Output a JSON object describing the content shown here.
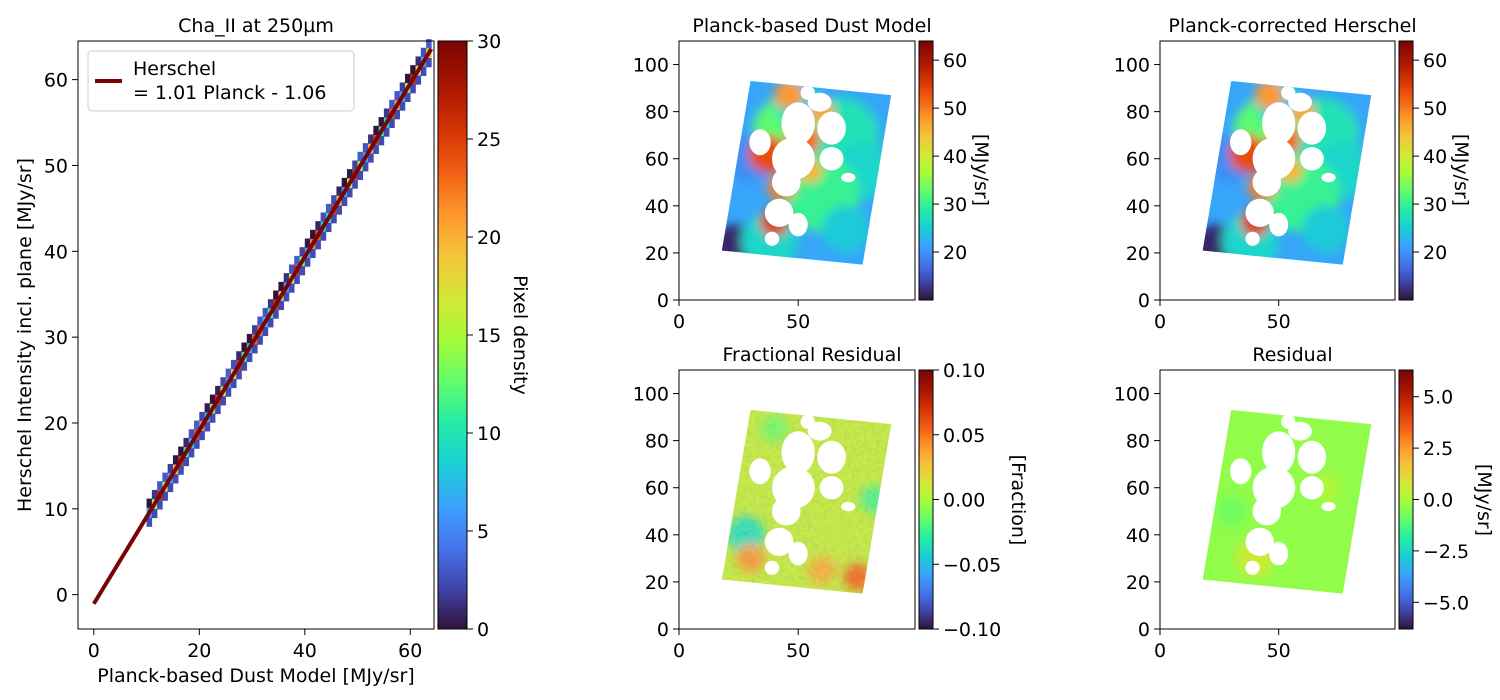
{
  "chart_data": [
    {
      "id": "scatter",
      "type": "heatmap",
      "title": "Cha_II at 250µm",
      "xlabel": "Planck-based Dust Model [MJy/sr]",
      "ylabel": "Herschel Intensity incl. plane [MJy/sr]",
      "xlim": [
        -3,
        64.5
      ],
      "ylim": [
        -4,
        64.5
      ],
      "xticks": [
        0,
        20,
        40,
        60
      ],
      "yticks": [
        0,
        10,
        20,
        30,
        40,
        50,
        60
      ],
      "fit": {
        "slope": 1.01,
        "intercept": -1.06,
        "x_range": [
          0,
          64
        ],
        "color": "#7a0403"
      },
      "density_points": {
        "x_range": [
          10,
          63
        ],
        "step": 1
      },
      "legend": {
        "label_line1": "Herschel",
        "label_line2": "= 1.01 Planck - 1.06",
        "placement": "upper-left"
      },
      "colorbar": {
        "label": "Pixel density",
        "range": [
          0,
          30
        ],
        "ticks": [
          0,
          5,
          10,
          15,
          20,
          25,
          30
        ],
        "colormap": "turbo"
      }
    },
    {
      "id": "model",
      "type": "heatmap",
      "title": "Planck-based Dust Model",
      "xticks": [
        0,
        50
      ],
      "yticks": [
        0,
        20,
        40,
        60,
        80,
        100
      ],
      "xlim": [
        0,
        99
      ],
      "ylim": [
        0,
        110
      ],
      "colorbar": {
        "label": "[MJy/sr]",
        "range": [
          10,
          64
        ],
        "ticks": [
          20,
          30,
          40,
          50,
          60
        ],
        "colormap": "turbo"
      }
    },
    {
      "id": "corrected",
      "type": "heatmap",
      "title": "Planck-corrected Herschel",
      "xticks": [
        0,
        50
      ],
      "yticks": [
        0,
        20,
        40,
        60,
        80,
        100
      ],
      "xlim": [
        0,
        99
      ],
      "ylim": [
        0,
        110
      ],
      "colorbar": {
        "label": "[MJy/sr]",
        "range": [
          10,
          64
        ],
        "ticks": [
          20,
          30,
          40,
          50,
          60
        ],
        "colormap": "turbo"
      }
    },
    {
      "id": "fracres",
      "type": "heatmap",
      "title": "Fractional Residual",
      "xticks": [
        0,
        50
      ],
      "yticks": [
        0,
        20,
        40,
        60,
        80,
        100
      ],
      "xlim": [
        0,
        99
      ],
      "ylim": [
        0,
        110
      ],
      "colorbar": {
        "label": "[Fraction]",
        "range": [
          -0.1,
          0.1
        ],
        "ticks": [
          -0.1,
          -0.05,
          0.0,
          0.05,
          0.1
        ],
        "tick_labels": [
          "−0.10",
          "−0.05",
          "0.00",
          "0.05",
          "0.10"
        ],
        "colormap": "turbo"
      }
    },
    {
      "id": "residual",
      "type": "heatmap",
      "title": "Residual",
      "xticks": [
        0,
        50
      ],
      "yticks": [
        0,
        20,
        40,
        60,
        80,
        100
      ],
      "xlim": [
        0,
        99
      ],
      "ylim": [
        0,
        110
      ],
      "colorbar": {
        "label": "[MJy/sr]",
        "range": [
          -6.3,
          6.3
        ],
        "ticks": [
          -5,
          -2.5,
          0,
          2.5,
          5
        ],
        "tick_labels": [
          "−5.0",
          "−2.5",
          "0.0",
          "2.5",
          "5.0"
        ],
        "colormap": "turbo"
      }
    }
  ]
}
